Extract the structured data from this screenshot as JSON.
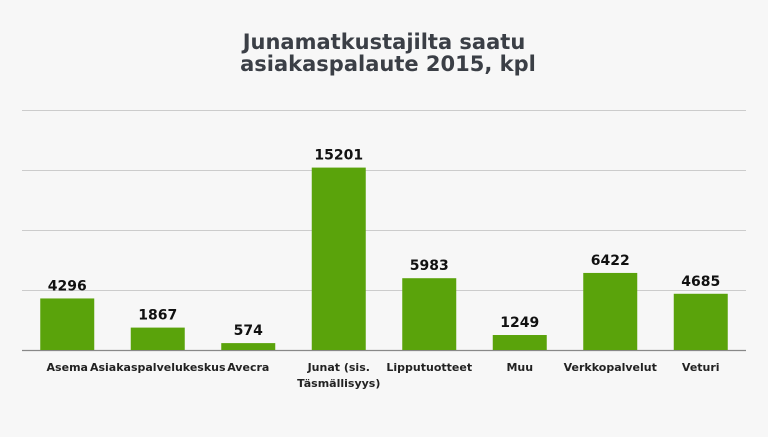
{
  "chart_data": {
    "type": "bar",
    "title_lines": [
      "Junamatkustajilta saatu",
      "asiakaspalaute 2015, kpl"
    ],
    "categories": [
      [
        "Asema"
      ],
      [
        "Asiakaspalvelukeskus"
      ],
      [
        "Avecra"
      ],
      [
        "Junat (sis.",
        "Täsmällisyys)"
      ],
      [
        "Lipputuotteet"
      ],
      [
        "Muu"
      ],
      [
        "Verkkopalvelut"
      ],
      [
        "Veturi"
      ]
    ],
    "values": [
      4296,
      1867,
      574,
      15201,
      5983,
      1249,
      6422,
      4685
    ],
    "ylim": [
      0,
      20000
    ],
    "grid": true,
    "colors": {
      "bar": "#5aa30b",
      "grid": "#cccccc",
      "axis": "#888888",
      "background": "#f7f7f7"
    }
  }
}
